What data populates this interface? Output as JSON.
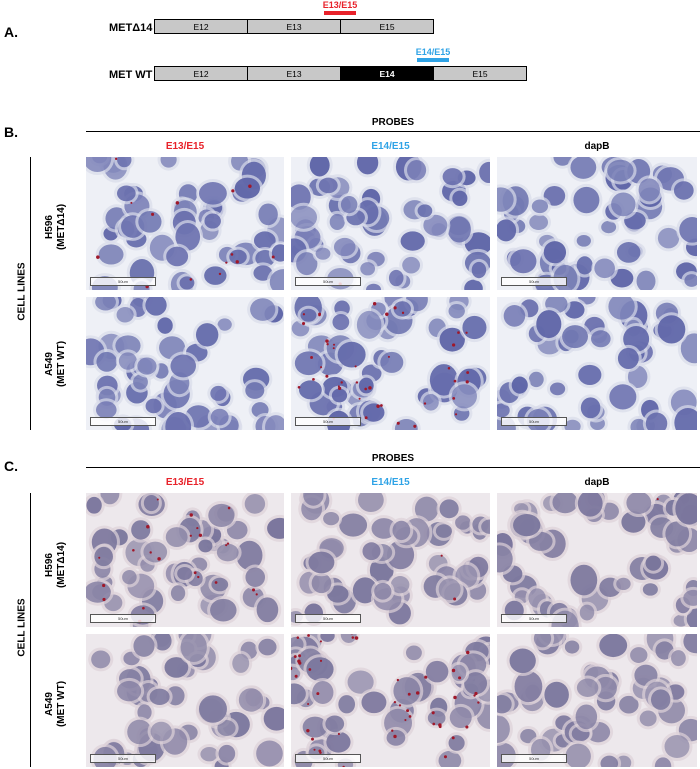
{
  "panel_a": {
    "letter": "A.",
    "constructs": [
      {
        "label": "METΔ14",
        "exons": [
          {
            "name": "E12",
            "fill": "#c8c8c8"
          },
          {
            "name": "E13",
            "fill": "#c8c8c8"
          },
          {
            "name": "E15",
            "fill": "#c8c8c8"
          }
        ],
        "probe": {
          "label": "E13/E15",
          "color": "#e8222a"
        }
      },
      {
        "label": "MET WT",
        "exons": [
          {
            "name": "E12",
            "fill": "#c8c8c8"
          },
          {
            "name": "E13",
            "fill": "#c8c8c8"
          },
          {
            "name": "E14",
            "fill": "#000000"
          },
          {
            "name": "E15",
            "fill": "#c8c8c8"
          }
        ],
        "probe": {
          "label": "E14/E15",
          "color": "#2fa3e6"
        }
      }
    ]
  },
  "panel_b": {
    "letter": "B.",
    "probes_title": "PROBES",
    "cell_lines_label": "CELL LINES",
    "columns": [
      {
        "label": "E13/E15",
        "color": "#e8222a"
      },
      {
        "label": "E14/E15",
        "color": "#2fa3e6"
      },
      {
        "label": "dapB",
        "color": "#000000"
      }
    ],
    "rows": [
      {
        "line1": "H596",
        "line2": "(METΔ14)"
      },
      {
        "line1": "A549",
        "line2": "(MET WT)"
      }
    ],
    "scale_label": "50um"
  },
  "panel_c": {
    "letter": "C.",
    "probes_title": "PROBES",
    "cell_lines_label": "CELL LINES",
    "columns": [
      {
        "label": "E13/E15",
        "color": "#e8222a"
      },
      {
        "label": "E14/E15",
        "color": "#2fa3e6"
      },
      {
        "label": "dapB",
        "color": "#000000"
      }
    ],
    "rows": [
      {
        "line1": "H596",
        "line2": "(METΔ14)"
      },
      {
        "line1": "A549",
        "line2": "(MET WT)"
      }
    ],
    "scale_label": "50um"
  },
  "colors": {
    "nucleus_b": "#5b62a6",
    "nucleus_c": "#76729a",
    "background_b": "#eef0f6",
    "background_c": "#ede8ec",
    "signal_dot": "#a0182a"
  }
}
